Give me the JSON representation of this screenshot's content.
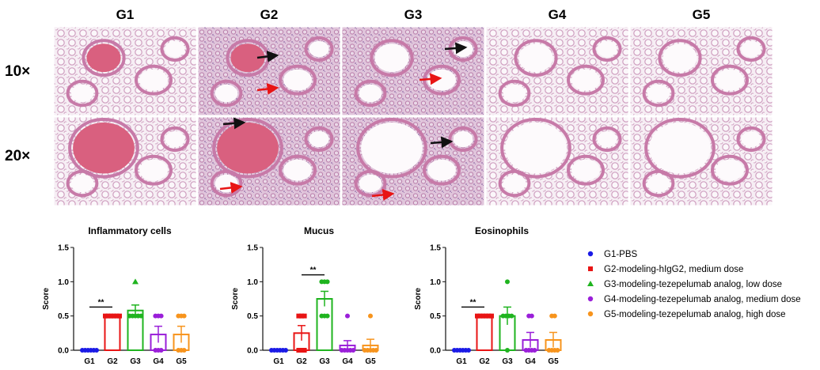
{
  "groups": [
    "G1",
    "G2",
    "G3",
    "G4",
    "G5"
  ],
  "magnifications": [
    "10×",
    "20×"
  ],
  "colors": {
    "G1": "#1a1ae6",
    "G2": "#e81414",
    "G3": "#1fb41f",
    "G4": "#9a1fd9",
    "G5": "#f7941d"
  },
  "legend": [
    {
      "group": "G1",
      "marker": "circle",
      "label": "G1-PBS"
    },
    {
      "group": "G2",
      "marker": "square",
      "label": "G2-modeling-hIgG2, medium dose"
    },
    {
      "group": "G3",
      "marker": "triangle",
      "label": "G3-modeling-tezepelumab analog, low dose"
    },
    {
      "group": "G4",
      "marker": "circle",
      "label": "G4-modeling-tezepelumab analog, medium dose"
    },
    {
      "group": "G5",
      "marker": "circle",
      "label": "G5-modeling-tezepelumab analog, high dose"
    }
  ],
  "chart_data": [
    {
      "type": "bar",
      "title": "Inflammatory cells",
      "ylabel": "Score",
      "xlabel": "",
      "ylim": [
        0,
        1.5
      ],
      "yticks": [
        "0.0",
        "0.5",
        "1.0",
        "1.5"
      ],
      "categories": [
        "G1",
        "G2",
        "G3",
        "G4",
        "G5"
      ],
      "means": [
        0,
        0.5,
        0.58,
        0.23,
        0.23
      ],
      "sem": [
        0,
        0,
        0.08,
        0.12,
        0.12
      ],
      "points": [
        [
          0,
          0,
          0,
          0,
          0,
          0
        ],
        [
          0.5,
          0.5,
          0.5,
          0.5,
          0.5,
          0.5
        ],
        [
          0.5,
          0.5,
          0.5,
          0.5,
          0.5,
          1.0
        ],
        [
          0,
          0,
          0,
          0.5,
          0.5,
          0.5
        ],
        [
          0,
          0,
          0,
          0.5,
          0.5,
          0.5
        ]
      ],
      "significance": {
        "from": "G1",
        "to": "G2",
        "label": "**"
      }
    },
    {
      "type": "bar",
      "title": "Mucus",
      "ylabel": "Score",
      "xlabel": "",
      "ylim": [
        0,
        1.5
      ],
      "yticks": [
        "0.0",
        "0.5",
        "1.0",
        "1.5"
      ],
      "categories": [
        "G1",
        "G2",
        "G3",
        "G4",
        "G5"
      ],
      "means": [
        0,
        0.25,
        0.75,
        0.07,
        0.07
      ],
      "sem": [
        0,
        0.11,
        0.11,
        0.07,
        0.09
      ],
      "points": [
        [
          0,
          0,
          0,
          0,
          0,
          0
        ],
        [
          0,
          0,
          0,
          0.5,
          0.5,
          0.5
        ],
        [
          0.5,
          0.5,
          0.5,
          1.0,
          1.0,
          1.0
        ],
        [
          0,
          0,
          0,
          0,
          0,
          0.5
        ],
        [
          0,
          0,
          0,
          0,
          0,
          0.5
        ]
      ],
      "significance": {
        "from": "G2",
        "to": "G3",
        "label": "**"
      }
    },
    {
      "type": "bar",
      "title": "Eosinophils",
      "ylabel": "Score",
      "xlabel": "",
      "ylim": [
        0,
        1.5
      ],
      "yticks": [
        "0.0",
        "0.5",
        "1.0",
        "1.5"
      ],
      "categories": [
        "G1",
        "G2",
        "G3",
        "G4",
        "G5"
      ],
      "means": [
        0,
        0.5,
        0.5,
        0.15,
        0.15
      ],
      "sem": [
        0,
        0,
        0.13,
        0.11,
        0.11
      ],
      "points": [
        [
          0,
          0,
          0,
          0,
          0,
          0
        ],
        [
          0.5,
          0.5,
          0.5,
          0.5,
          0.5,
          0.5
        ],
        [
          0,
          0.5,
          0.5,
          0.5,
          0.5,
          1.0
        ],
        [
          0,
          0,
          0,
          0,
          0.5,
          0.5
        ],
        [
          0,
          0,
          0,
          0,
          0.5,
          0.5
        ]
      ],
      "significance": {
        "from": "G1",
        "to": "G2",
        "label": "**"
      }
    }
  ]
}
